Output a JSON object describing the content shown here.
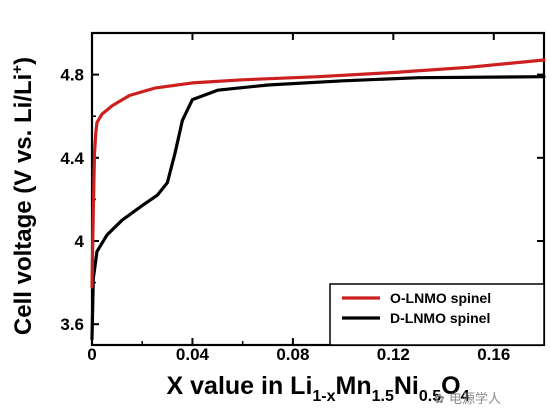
{
  "chart_data": {
    "type": "line",
    "ylabel_main": "Cell voltage (V vs. Li/Li",
    "ylabel_sup": "+",
    "ylabel_tail": ")",
    "xlabel_parts": [
      {
        "t": "X value in Li",
        "sub": false
      },
      {
        "t": "1-x",
        "sub": true
      },
      {
        "t": "Mn",
        "sub": false
      },
      {
        "t": "1.5",
        "sub": true
      },
      {
        "t": "Ni",
        "sub": false
      },
      {
        "t": "0.5",
        "sub": true
      },
      {
        "t": "O",
        "sub": false
      },
      {
        "t": "4",
        "sub": true
      }
    ],
    "xlim": [
      0,
      0.18
    ],
    "ylim": [
      3.5,
      5.0
    ],
    "xticks": [
      0,
      0.04,
      0.08,
      0.12,
      0.16
    ],
    "xtick_labels": [
      "0",
      "0.04",
      "0.08",
      "0.12",
      "0.16"
    ],
    "yticks": [
      3.6,
      4.0,
      4.4,
      4.8
    ],
    "ytick_labels": [
      "3.6",
      "4",
      "4.4",
      "4.8"
    ],
    "legend_position": "bottom-right",
    "series": [
      {
        "name": "O-LNMO spinel",
        "color": "#cc1f1f",
        "points": [
          [
            0,
            3.78
          ],
          [
            0.0005,
            4.15
          ],
          [
            0.001,
            4.42
          ],
          [
            0.0015,
            4.52
          ],
          [
            0.002,
            4.57
          ],
          [
            0.004,
            4.61
          ],
          [
            0.008,
            4.65
          ],
          [
            0.015,
            4.7
          ],
          [
            0.025,
            4.735
          ],
          [
            0.04,
            4.76
          ],
          [
            0.06,
            4.775
          ],
          [
            0.09,
            4.79
          ],
          [
            0.12,
            4.81
          ],
          [
            0.15,
            4.835
          ],
          [
            0.18,
            4.87
          ]
        ]
      },
      {
        "name": "D-LNMO spinel",
        "color": "#000000",
        "points": [
          [
            0,
            3.53
          ],
          [
            0.0005,
            3.82
          ],
          [
            0.002,
            3.95
          ],
          [
            0.006,
            4.03
          ],
          [
            0.012,
            4.1
          ],
          [
            0.02,
            4.17
          ],
          [
            0.026,
            4.22
          ],
          [
            0.03,
            4.28
          ],
          [
            0.033,
            4.42
          ],
          [
            0.036,
            4.58
          ],
          [
            0.04,
            4.68
          ],
          [
            0.05,
            4.725
          ],
          [
            0.07,
            4.75
          ],
          [
            0.1,
            4.77
          ],
          [
            0.13,
            4.785
          ],
          [
            0.18,
            4.79
          ]
        ]
      }
    ]
  },
  "watermark": "电源学人"
}
